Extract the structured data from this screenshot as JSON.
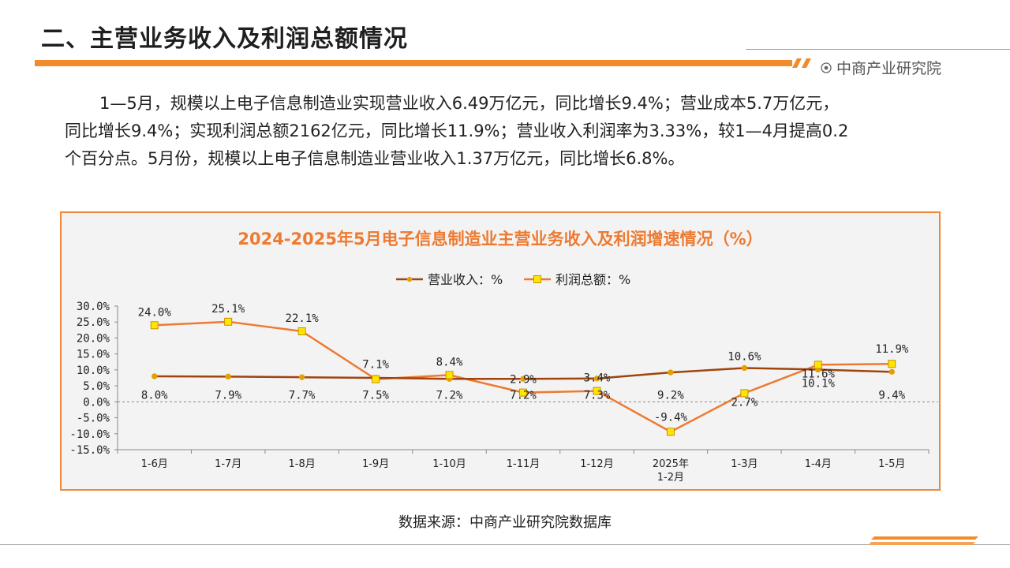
{
  "header": {
    "title": "二、主营业务收入及利润总额情况",
    "brand": "中商产业研究院"
  },
  "body": {
    "paragraph_line1": "1—5月，规模以上电子信息制造业实现营业收入6.49万亿元，同比增长9.4%；营业成本5.7万亿元，",
    "paragraph_line2": "同比增长9.4%；实现利润总额2162亿元，同比增长11.9%；营业收入利润率为3.33%，较1—4月提高0.2",
    "paragraph_line3": "个百分点。5月份，规模以上电子信息制造业营业收入1.37万亿元，同比增长6.8%。"
  },
  "source": "数据来源：中商产业研究院数据库",
  "colors": {
    "accent": "#f28b2c",
    "revenue_line": "#a0440e",
    "revenue_marker": "#e5a000",
    "profit_line": "#ee7a30",
    "profit_marker_fill": "#ffe600",
    "profit_marker_stroke": "#c89000",
    "chart_title": "#ee7a30"
  },
  "chart_data": {
    "type": "line",
    "title": "2024-2025年5月电子信息制造业主营业务收入及利润增速情况（%）",
    "categories": [
      "1-6月",
      "1-7月",
      "1-8月",
      "1-9月",
      "1-10月",
      "1-11月",
      "1-12月",
      "2025年\n1-2月",
      "1-3月",
      "1-4月",
      "1-5月"
    ],
    "series": [
      {
        "name": "营业收入：%",
        "values": [
          8.0,
          7.9,
          7.7,
          7.5,
          7.2,
          7.2,
          7.3,
          9.2,
          10.6,
          10.1,
          9.4
        ],
        "labels": [
          "8.0%",
          "7.9%",
          "7.7%",
          "7.5%",
          "7.2%",
          "7.2%",
          "7.3%",
          "9.2%",
          "10.6%",
          "10.1%",
          "9.4%"
        ]
      },
      {
        "name": "利润总额：%",
        "values": [
          24.0,
          25.1,
          22.1,
          7.1,
          8.4,
          2.9,
          3.4,
          -9.4,
          2.7,
          11.6,
          11.9
        ],
        "labels": [
          "24.0%",
          "25.1%",
          "22.1%",
          "7.1%",
          "8.4%",
          "2.9%",
          "3.4%",
          "-9.4%",
          "2.7%",
          "11.6%",
          "11.9%"
        ]
      }
    ],
    "ylim": [
      -15,
      30
    ],
    "yticks": [
      "30.0%",
      "25.0%",
      "20.0%",
      "15.0%",
      "10.0%",
      "5.0%",
      "0.0%",
      "-5.0%",
      "-10.0%",
      "-15.0%"
    ],
    "ytick_values": [
      30,
      25,
      20,
      15,
      10,
      5,
      0,
      -5,
      -10,
      -15
    ],
    "legend_position": "top",
    "grid": false
  }
}
